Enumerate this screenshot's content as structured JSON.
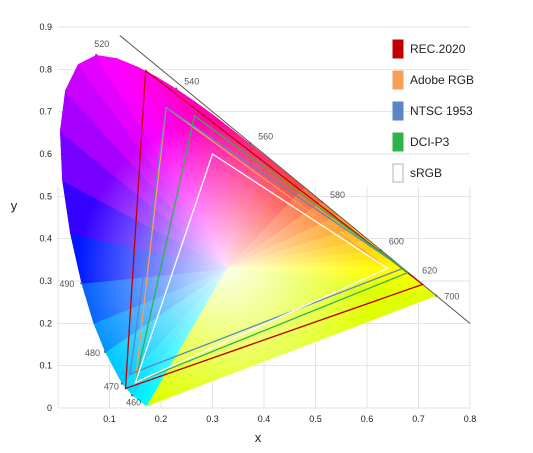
{
  "chart_data": {
    "type": "scatter",
    "title": "",
    "xlabel": "x",
    "ylabel": "y",
    "xlim": [
      0,
      0.8
    ],
    "ylim": [
      0,
      0.9
    ],
    "x_ticks": [
      "0",
      "0.1",
      "0.2",
      "0.3",
      "0.4",
      "0.5",
      "0.6",
      "0.7",
      "0.8"
    ],
    "y_ticks": [
      "0",
      "0.1",
      "0.2",
      "0.3",
      "0.4",
      "0.5",
      "0.6",
      "0.7",
      "0.8",
      "0.9"
    ],
    "grid": true,
    "legend_position": "top-right",
    "spectral_locus": {
      "points": [
        [
          0.1741,
          0.005
        ],
        [
          0.1738,
          0.0049
        ],
        [
          0.1733,
          0.0048
        ],
        [
          0.1726,
          0.0048
        ],
        [
          0.1714,
          0.0051
        ],
        [
          0.1689,
          0.0069
        ],
        [
          0.1644,
          0.0109
        ],
        [
          0.1566,
          0.0177
        ],
        [
          0.144,
          0.0297
        ],
        [
          0.1241,
          0.0578
        ],
        [
          0.0913,
          0.1327
        ],
        [
          0.0687,
          0.2007
        ],
        [
          0.0454,
          0.295
        ],
        [
          0.0235,
          0.4127
        ],
        [
          0.0082,
          0.5384
        ],
        [
          0.0039,
          0.6548
        ],
        [
          0.0139,
          0.7502
        ],
        [
          0.0389,
          0.812
        ],
        [
          0.0743,
          0.8338
        ],
        [
          0.1142,
          0.8262
        ],
        [
          0.1547,
          0.8059
        ],
        [
          0.1929,
          0.7816
        ],
        [
          0.2296,
          0.7543
        ],
        [
          0.2658,
          0.7243
        ],
        [
          0.3016,
          0.6923
        ],
        [
          0.3373,
          0.6589
        ],
        [
          0.3731,
          0.6245
        ],
        [
          0.4087,
          0.5896
        ],
        [
          0.4441,
          0.5547
        ],
        [
          0.4788,
          0.5202
        ],
        [
          0.5125,
          0.4866
        ],
        [
          0.5448,
          0.4544
        ],
        [
          0.5752,
          0.4242
        ],
        [
          0.6029,
          0.3965
        ],
        [
          0.627,
          0.3725
        ],
        [
          0.6482,
          0.3514
        ],
        [
          0.6658,
          0.334
        ],
        [
          0.6915,
          0.3083
        ],
        [
          0.7079,
          0.292
        ],
        [
          0.7347,
          0.2653
        ]
      ],
      "wavelength_labels": [
        {
          "nm": "460",
          "x": 0.144,
          "y": 0.0297
        },
        {
          "nm": "470",
          "x": 0.1241,
          "y": 0.0578
        },
        {
          "nm": "480",
          "x": 0.0913,
          "y": 0.1327
        },
        {
          "nm": "490",
          "x": 0.0454,
          "y": 0.295
        },
        {
          "nm": "520",
          "x": 0.0743,
          "y": 0.8338
        },
        {
          "nm": "540",
          "x": 0.2296,
          "y": 0.7543
        },
        {
          "nm": "560",
          "x": 0.3731,
          "y": 0.6245
        },
        {
          "nm": "580",
          "x": 0.5125,
          "y": 0.4866
        },
        {
          "nm": "600",
          "x": 0.627,
          "y": 0.3725
        },
        {
          "nm": "620",
          "x": 0.6915,
          "y": 0.3083
        },
        {
          "nm": "700",
          "x": 0.7347,
          "y": 0.2653
        }
      ]
    },
    "series": [
      {
        "name": "REC.2020",
        "color": "#c00000",
        "points": [
          [
            0.708,
            0.292
          ],
          [
            0.17,
            0.797
          ],
          [
            0.131,
            0.046
          ]
        ]
      },
      {
        "name": "Adobe RGB",
        "color": "#f4a05a",
        "points": [
          [
            0.64,
            0.33
          ],
          [
            0.21,
            0.71
          ],
          [
            0.15,
            0.06
          ]
        ]
      },
      {
        "name": "NTSC 1953",
        "color": "#5a86c8",
        "points": [
          [
            0.67,
            0.33
          ],
          [
            0.21,
            0.71
          ],
          [
            0.14,
            0.08
          ]
        ]
      },
      {
        "name": "DCI-P3",
        "color": "#2db34a",
        "points": [
          [
            0.68,
            0.32
          ],
          [
            0.265,
            0.69
          ],
          [
            0.15,
            0.06
          ]
        ]
      },
      {
        "name": "sRGB",
        "color": "#ffffff",
        "points": [
          [
            0.64,
            0.33
          ],
          [
            0.3,
            0.6
          ],
          [
            0.15,
            0.06
          ]
        ]
      }
    ]
  }
}
